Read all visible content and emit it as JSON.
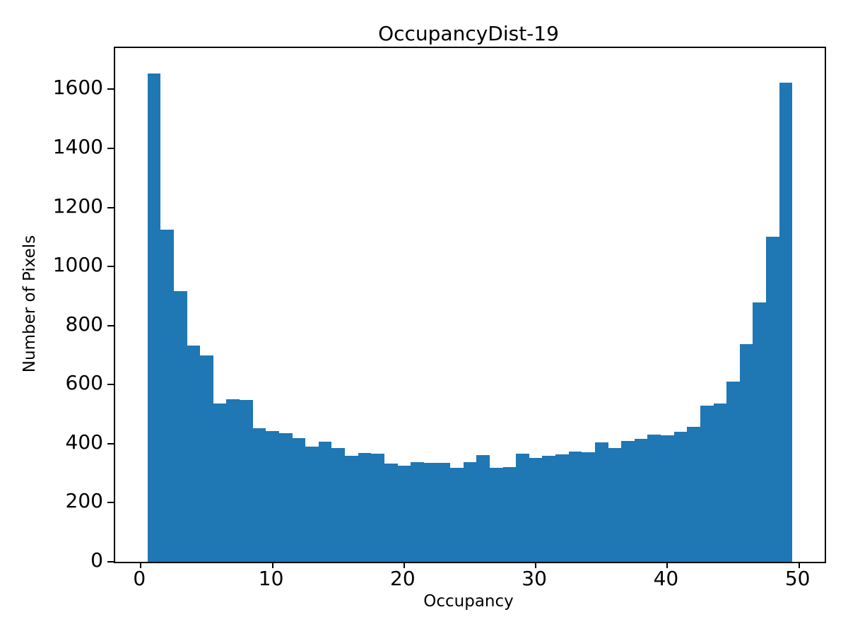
{
  "chart_data": {
    "type": "bar",
    "subtype": "histogram",
    "title": "OccupancyDist-19",
    "xlabel": "Occupancy",
    "ylabel": "Number of Pixels",
    "bar_color": "#1f77b4",
    "grid": false,
    "legend": null,
    "bin_width": 1,
    "bin_centers": [
      1,
      2,
      3,
      4,
      5,
      6,
      7,
      8,
      9,
      10,
      11,
      12,
      13,
      14,
      15,
      16,
      17,
      18,
      19,
      20,
      21,
      22,
      23,
      24,
      25,
      26,
      27,
      28,
      29,
      30,
      31,
      32,
      33,
      34,
      35,
      36,
      37,
      38,
      39,
      40,
      41,
      42,
      43,
      44,
      45,
      46,
      47,
      48,
      49
    ],
    "values": [
      1655,
      1126,
      917,
      733,
      700,
      536,
      550,
      547,
      452,
      444,
      436,
      418,
      389,
      408,
      386,
      358,
      368,
      367,
      332,
      325,
      337,
      336,
      335,
      318,
      337,
      361,
      318,
      321,
      366,
      353,
      358,
      364,
      374,
      370,
      405,
      386,
      410,
      416,
      432,
      428,
      440,
      457,
      528,
      537,
      610,
      738,
      879,
      1100,
      1622
    ],
    "xlim": [
      -1.95,
      51.95
    ],
    "ylim": [
      0,
      1740
    ],
    "xticks": [
      0,
      10,
      20,
      30,
      40,
      50
    ],
    "yticks": [
      0,
      200,
      400,
      600,
      800,
      1000,
      1200,
      1400,
      1600
    ]
  }
}
